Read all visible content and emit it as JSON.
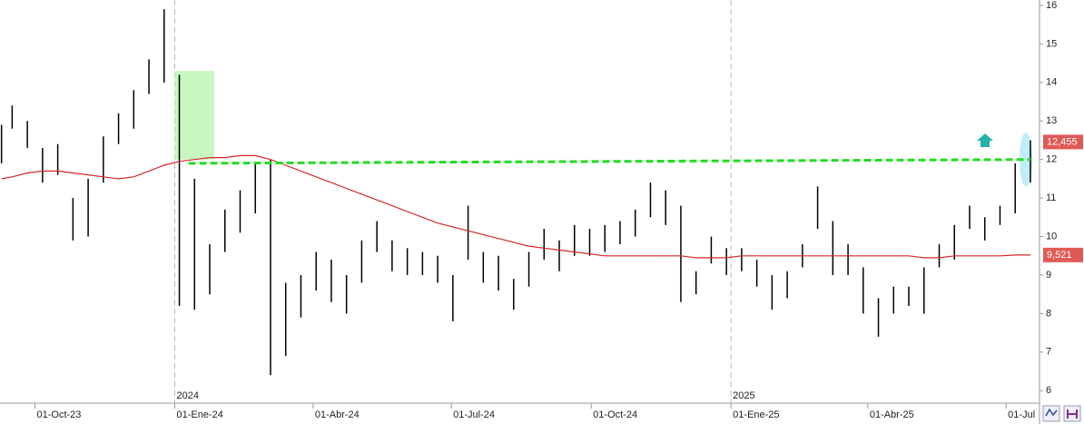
{
  "chart_data": {
    "type": "ohlc",
    "x": [
      "2023-09-09",
      "2023-09-16",
      "2023-09-26",
      "2023-10-06",
      "2023-10-16",
      "2023-10-26",
      "2023-11-05",
      "2023-11-15",
      "2023-11-25",
      "2023-12-05",
      "2023-12-15",
      "2023-12-25",
      "2024-01-04",
      "2024-01-14",
      "2024-01-24",
      "2024-02-03",
      "2024-02-13",
      "2024-02-23",
      "2024-03-04",
      "2024-03-14",
      "2024-03-24",
      "2024-04-03",
      "2024-04-13",
      "2024-04-23",
      "2024-05-03",
      "2024-05-13",
      "2024-05-23",
      "2024-06-02",
      "2024-06-12",
      "2024-06-22",
      "2024-07-02",
      "2024-07-12",
      "2024-07-22",
      "2024-08-01",
      "2024-08-11",
      "2024-08-21",
      "2024-08-31",
      "2024-09-10",
      "2024-09-20",
      "2024-09-30",
      "2024-10-10",
      "2024-10-20",
      "2024-10-30",
      "2024-11-09",
      "2024-11-19",
      "2024-11-29",
      "2024-12-09",
      "2024-12-19",
      "2024-12-29",
      "2025-01-08",
      "2025-01-18",
      "2025-01-28",
      "2025-02-07",
      "2025-02-17",
      "2025-02-27",
      "2025-03-09",
      "2025-03-19",
      "2025-03-29",
      "2025-04-08",
      "2025-04-18",
      "2025-04-28",
      "2025-05-08",
      "2025-05-18",
      "2025-05-28",
      "2025-06-07",
      "2025-06-17",
      "2025-06-27",
      "2025-07-07",
      "2025-07-17"
    ],
    "high": [
      12.9,
      13.4,
      13.0,
      12.3,
      12.4,
      11.0,
      11.5,
      12.6,
      13.2,
      13.8,
      14.6,
      15.9,
      14.2,
      11.5,
      9.8,
      10.7,
      11.2,
      11.9,
      12.0,
      8.8,
      9.0,
      9.6,
      9.4,
      9.0,
      9.9,
      10.4,
      9.9,
      9.7,
      9.6,
      9.5,
      9.0,
      10.8,
      9.6,
      9.5,
      8.9,
      9.6,
      10.2,
      9.9,
      10.3,
      10.2,
      10.3,
      10.4,
      10.7,
      11.4,
      11.2,
      10.8,
      9.1,
      10.0,
      9.7,
      9.7,
      9.4,
      9.0,
      9.1,
      9.8,
      11.3,
      10.4,
      9.8,
      9.2,
      8.4,
      8.7,
      8.7,
      9.2,
      9.8,
      10.3,
      10.8,
      10.5,
      10.8,
      11.9,
      12.5
    ],
    "low": [
      11.9,
      12.8,
      12.3,
      11.4,
      11.6,
      9.9,
      10.0,
      11.4,
      12.4,
      12.8,
      13.7,
      14.0,
      8.2,
      8.1,
      8.5,
      9.6,
      10.1,
      10.6,
      6.4,
      6.9,
      7.9,
      8.6,
      8.3,
      8.0,
      8.8,
      9.6,
      9.1,
      9.0,
      9.0,
      8.8,
      7.8,
      9.4,
      8.8,
      8.6,
      8.1,
      8.7,
      9.4,
      9.1,
      9.5,
      9.5,
      9.6,
      9.8,
      10.0,
      10.5,
      10.3,
      8.3,
      8.5,
      9.3,
      9.0,
      9.1,
      8.7,
      8.1,
      8.4,
      9.2,
      10.2,
      9.0,
      9.0,
      8.0,
      7.4,
      8.0,
      8.2,
      8.0,
      9.2,
      9.4,
      10.2,
      9.9,
      10.3,
      10.6,
      11.4
    ],
    "ma": [
      11.5,
      11.55,
      11.65,
      11.7,
      11.7,
      11.65,
      11.6,
      11.55,
      11.5,
      11.55,
      11.7,
      11.85,
      11.95,
      12.0,
      12.05,
      12.05,
      12.1,
      12.1,
      12.0,
      11.85,
      11.7,
      11.55,
      11.4,
      11.25,
      11.1,
      10.95,
      10.8,
      10.65,
      10.5,
      10.35,
      10.25,
      10.15,
      10.05,
      9.95,
      9.85,
      9.75,
      9.7,
      9.65,
      9.6,
      9.55,
      9.5,
      9.5,
      9.5,
      9.5,
      9.5,
      9.5,
      9.45,
      9.45,
      9.45,
      9.5,
      9.5,
      9.5,
      9.5,
      9.5,
      9.5,
      9.5,
      9.5,
      9.5,
      9.5,
      9.5,
      9.5,
      9.45,
      9.45,
      9.5,
      9.5,
      9.5,
      9.5,
      9.52,
      9.52
    ],
    "bar_color": "#000000",
    "ma_color": "#d62728",
    "xlim": [
      "2023-09-08",
      "2025-07-23"
    ],
    "ylim": [
      5.7,
      16.14
    ],
    "yticks": [
      6,
      7,
      8,
      9,
      10,
      11,
      12,
      13,
      14,
      15,
      16
    ],
    "xticks": [
      {
        "value": "2023-10-01",
        "label": "01-Oct-23"
      },
      {
        "value": "2024-01-01",
        "label": "01-Ene-24"
      },
      {
        "value": "2024-04-01",
        "label": "01-Abr-24"
      },
      {
        "value": "2024-07-01",
        "label": "01-Jul-24"
      },
      {
        "value": "2024-10-01",
        "label": "01-Oct-24"
      },
      {
        "value": "2025-01-01",
        "label": "01-Ene-25"
      },
      {
        "value": "2025-04-01",
        "label": "01-Abr-25"
      },
      {
        "value": "2025-07-01",
        "label": "01-Jul"
      }
    ],
    "year_ticks": [
      {
        "value": "2024-01-01",
        "label": "2024"
      },
      {
        "value": "2025-01-01",
        "label": "2025"
      }
    ],
    "zone": {
      "x": [
        "2024-01-01",
        "2024-01-27"
      ],
      "y": [
        12.0,
        14.3
      ],
      "color": "#c8f7c0"
    },
    "highlight": {
      "x": "2025-07-14",
      "y": [
        11.3,
        12.7
      ],
      "color": "#bfeef7"
    },
    "hline": {
      "x": [
        "2024-01-10",
        "2025-07-17"
      ],
      "y": [
        11.9,
        12.0
      ],
      "color": "#22dd22"
    },
    "price_labels": [
      {
        "value": 12.455,
        "label": "12,455",
        "color": "#e05a55"
      },
      {
        "value": 9.521,
        "label": "9,521",
        "color": "#e05a55"
      }
    ]
  }
}
